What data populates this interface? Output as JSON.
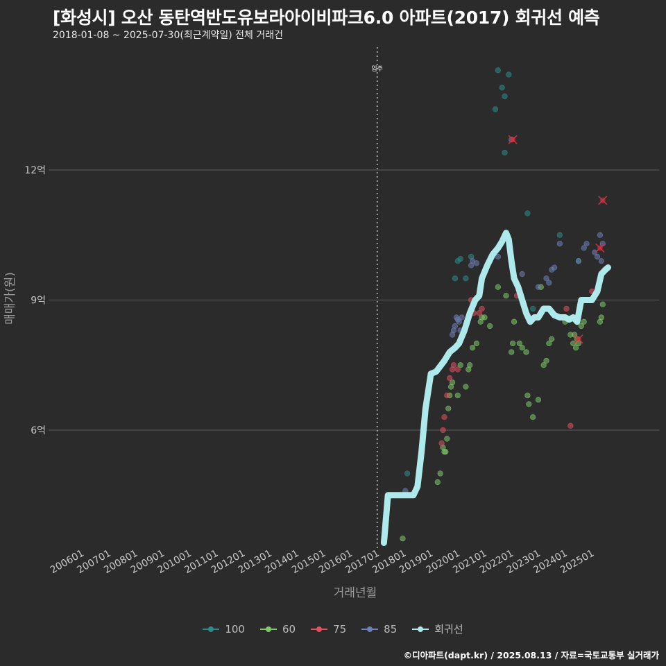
{
  "header": {
    "title": "[화성시] 오산 동탄역반도유보라아이비파크6.0 아파트(2017) 회귀선 예측",
    "subtitle": "2018-01-08 ~ 2025-07-30(최근계약일) 전체 거래건"
  },
  "footer": {
    "credit": "©디아파트(dapt.kr) / 2025.08.13 / 자료=국토교통부 실거래가"
  },
  "colors": {
    "background": "#2b2b2b",
    "grid": "#5c5c5c",
    "s100": "#2e8b8b",
    "s60": "#7fc86a",
    "s75": "#e0505e",
    "s85": "#6f80b8",
    "regression": "#aee9ec",
    "cancel": "#d9303c"
  },
  "chart_data": {
    "type": "scatter",
    "title": "[화성시] 오산 동탄역반도유보라아이비파크6.0 아파트(2017) 회귀선 예측",
    "xlabel": "거래년월",
    "ylabel": "매매가(원)",
    "xlim": [
      2006.0,
      2026.0
    ],
    "ylim": [
      2.4,
      15.0
    ],
    "x_ticks": [
      {
        "v": 2006.0,
        "label": "200601"
      },
      {
        "v": 2007.0,
        "label": "200701"
      },
      {
        "v": 2008.0,
        "label": "200801"
      },
      {
        "v": 2009.0,
        "label": "200901"
      },
      {
        "v": 2010.0,
        "label": "201001"
      },
      {
        "v": 2011.0,
        "label": "201101"
      },
      {
        "v": 2012.0,
        "label": "201201"
      },
      {
        "v": 2013.0,
        "label": "201301"
      },
      {
        "v": 2014.0,
        "label": "201401"
      },
      {
        "v": 2015.0,
        "label": "201501"
      },
      {
        "v": 2016.0,
        "label": "201601"
      },
      {
        "v": 2017.0,
        "label": "201701"
      },
      {
        "v": 2018.0,
        "label": "201801"
      },
      {
        "v": 2019.0,
        "label": "201901"
      },
      {
        "v": 2020.0,
        "label": "202001"
      },
      {
        "v": 2021.0,
        "label": "202101"
      },
      {
        "v": 2022.0,
        "label": "202201"
      },
      {
        "v": 2023.0,
        "label": "202301"
      },
      {
        "v": 2024.0,
        "label": "202401"
      },
      {
        "v": 2025.0,
        "label": "202501"
      }
    ],
    "y_ticks": [
      {
        "v": 6,
        "label": "6억"
      },
      {
        "v": 9,
        "label": "9억"
      },
      {
        "v": 12,
        "label": "12억"
      }
    ],
    "annotations": [
      {
        "x": 2017.0,
        "label": "입주"
      }
    ],
    "legend": [
      {
        "key": "s100",
        "label": "100"
      },
      {
        "key": "s60",
        "label": "60"
      },
      {
        "key": "s75",
        "label": "75"
      },
      {
        "key": "s85",
        "label": "85"
      },
      {
        "key": "regression",
        "label": "회귀선"
      }
    ],
    "series": [
      {
        "name": "100",
        "color": "#2e8b8b",
        "points": [
          [
            2018.12,
            5.0
          ],
          [
            2019.9,
            9.5
          ],
          [
            2020.0,
            9.9
          ],
          [
            2020.1,
            9.95
          ],
          [
            2020.3,
            9.5
          ],
          [
            2020.5,
            10.0
          ],
          [
            2021.4,
            13.4
          ],
          [
            2021.5,
            14.3
          ],
          [
            2021.65,
            13.9
          ],
          [
            2021.75,
            12.4
          ],
          [
            2021.75,
            13.7
          ],
          [
            2021.9,
            14.2
          ],
          [
            2022.6,
            11.0
          ],
          [
            2022.8,
            8.8
          ],
          [
            2023.8,
            10.5
          ],
          [
            2024.5,
            9.9
          ]
        ]
      },
      {
        "name": "60",
        "color": "#7fc86a",
        "points": [
          [
            2017.95,
            3.5
          ],
          [
            2019.25,
            4.8
          ],
          [
            2019.35,
            5.0
          ],
          [
            2019.45,
            5.6
          ],
          [
            2019.5,
            5.5
          ],
          [
            2019.55,
            5.5
          ],
          [
            2019.6,
            5.8
          ],
          [
            2019.65,
            6.5
          ],
          [
            2019.7,
            6.8
          ],
          [
            2019.75,
            7.0
          ],
          [
            2019.8,
            7.1
          ],
          [
            2020.0,
            6.8
          ],
          [
            2020.1,
            7.5
          ],
          [
            2020.3,
            7.0
          ],
          [
            2020.4,
            7.4
          ],
          [
            2020.45,
            7.5
          ],
          [
            2020.55,
            7.9
          ],
          [
            2020.7,
            8.0
          ],
          [
            2020.85,
            8.5
          ],
          [
            2020.9,
            8.6
          ],
          [
            2021.0,
            8.6
          ],
          [
            2021.2,
            8.4
          ],
          [
            2021.5,
            9.3
          ],
          [
            2021.8,
            9.1
          ],
          [
            2022.0,
            7.8
          ],
          [
            2022.05,
            8.0
          ],
          [
            2022.1,
            8.5
          ],
          [
            2022.3,
            8.0
          ],
          [
            2022.4,
            7.9
          ],
          [
            2022.55,
            7.8
          ],
          [
            2022.6,
            6.8
          ],
          [
            2022.65,
            6.6
          ],
          [
            2022.8,
            6.3
          ],
          [
            2023.0,
            6.7
          ],
          [
            2023.1,
            9.3
          ],
          [
            2023.2,
            7.5
          ],
          [
            2023.3,
            7.6
          ],
          [
            2023.4,
            8.0
          ],
          [
            2023.5,
            8.1
          ],
          [
            2024.0,
            8.5
          ],
          [
            2024.2,
            8.2
          ],
          [
            2024.3,
            8.0
          ],
          [
            2024.35,
            8.2
          ],
          [
            2024.4,
            7.9
          ],
          [
            2024.45,
            8.1
          ],
          [
            2024.5,
            8.0
          ],
          [
            2024.6,
            8.4
          ],
          [
            2024.7,
            8.5
          ],
          [
            2025.3,
            8.5
          ],
          [
            2025.35,
            8.6
          ],
          [
            2025.4,
            8.9
          ]
        ]
      },
      {
        "name": "75",
        "color": "#e0505e",
        "points": [
          [
            2019.4,
            5.7
          ],
          [
            2019.45,
            6.0
          ],
          [
            2019.5,
            6.3
          ],
          [
            2019.6,
            6.8
          ],
          [
            2019.7,
            7.2
          ],
          [
            2019.8,
            7.4
          ],
          [
            2019.85,
            7.5
          ],
          [
            2020.0,
            7.4
          ],
          [
            2020.5,
            9.0
          ],
          [
            2020.6,
            8.7
          ],
          [
            2020.8,
            8.7
          ],
          [
            2020.9,
            8.8
          ],
          [
            2022.2,
            9.1
          ],
          [
            2024.05,
            8.8
          ],
          [
            2024.2,
            6.1
          ],
          [
            2025.0,
            9.2
          ]
        ]
      },
      {
        "name": "85",
        "color": "#6f80b8",
        "points": [
          [
            2018.05,
            4.6
          ],
          [
            2019.8,
            8.2
          ],
          [
            2019.85,
            8.3
          ],
          [
            2019.9,
            8.4
          ],
          [
            2019.95,
            8.6
          ],
          [
            2020.0,
            8.55
          ],
          [
            2020.05,
            8.5
          ],
          [
            2020.1,
            8.3
          ],
          [
            2020.15,
            8.6
          ],
          [
            2020.5,
            9.8
          ],
          [
            2020.55,
            9.9
          ],
          [
            2020.7,
            9.85
          ],
          [
            2021.5,
            10.0
          ],
          [
            2022.0,
            12.7
          ],
          [
            2022.4,
            9.6
          ],
          [
            2023.0,
            9.3
          ],
          [
            2023.3,
            9.5
          ],
          [
            2023.4,
            9.4
          ],
          [
            2023.5,
            9.7
          ],
          [
            2023.6,
            9.75
          ],
          [
            2023.8,
            10.3
          ],
          [
            2024.5,
            9.9
          ],
          [
            2024.7,
            10.2
          ],
          [
            2024.8,
            10.3
          ],
          [
            2025.1,
            10.1
          ],
          [
            2025.2,
            10.0
          ],
          [
            2025.3,
            10.5
          ],
          [
            2025.35,
            9.9
          ],
          [
            2025.4,
            10.3
          ]
        ]
      },
      {
        "name": "회귀선",
        "color": "#aee9ec",
        "points": [
          [
            2017.25,
            3.4
          ],
          [
            2017.4,
            4.5
          ],
          [
            2018.35,
            4.5
          ],
          [
            2018.5,
            4.7
          ],
          [
            2018.65,
            5.5
          ],
          [
            2018.8,
            6.5
          ],
          [
            2019.0,
            7.3
          ],
          [
            2019.2,
            7.35
          ],
          [
            2019.5,
            7.6
          ],
          [
            2019.7,
            7.8
          ],
          [
            2019.9,
            7.9
          ],
          [
            2020.05,
            8.0
          ],
          [
            2020.25,
            8.3
          ],
          [
            2020.45,
            8.7
          ],
          [
            2020.65,
            9.0
          ],
          [
            2020.8,
            9.1
          ],
          [
            2020.9,
            9.5
          ],
          [
            2021.1,
            9.8
          ],
          [
            2021.3,
            10.05
          ],
          [
            2021.5,
            10.2
          ],
          [
            2021.65,
            10.35
          ],
          [
            2021.8,
            10.55
          ],
          [
            2021.9,
            10.4
          ],
          [
            2022.0,
            9.9
          ],
          [
            2022.1,
            9.5
          ],
          [
            2022.25,
            9.3
          ],
          [
            2022.4,
            9.0
          ],
          [
            2022.55,
            8.7
          ],
          [
            2022.7,
            8.5
          ],
          [
            2022.85,
            8.6
          ],
          [
            2023.0,
            8.6
          ],
          [
            2023.2,
            8.8
          ],
          [
            2023.4,
            8.8
          ],
          [
            2023.6,
            8.65
          ],
          [
            2023.8,
            8.6
          ],
          [
            2024.0,
            8.6
          ],
          [
            2024.15,
            8.55
          ],
          [
            2024.3,
            8.6
          ],
          [
            2024.45,
            8.5
          ],
          [
            2024.6,
            9.0
          ],
          [
            2024.8,
            9.0
          ],
          [
            2025.0,
            9.0
          ],
          [
            2025.2,
            9.2
          ],
          [
            2025.35,
            9.6
          ],
          [
            2025.5,
            9.7
          ],
          [
            2025.6,
            9.75
          ]
        ]
      }
    ],
    "cancelled": [
      [
        2022.05,
        12.7
      ],
      [
        2024.5,
        8.1
      ],
      [
        2025.3,
        10.2
      ],
      [
        2025.4,
        11.3
      ]
    ]
  }
}
